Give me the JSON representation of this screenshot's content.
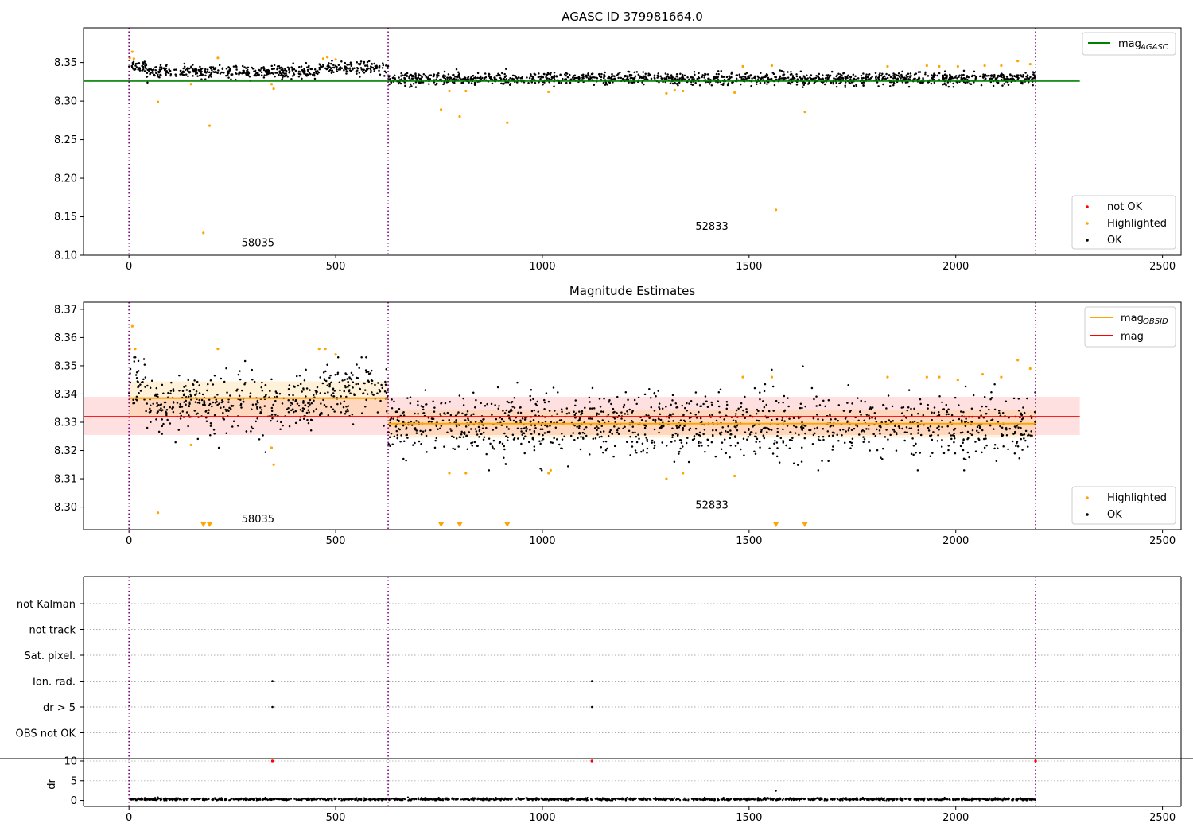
{
  "chart_data": [
    {
      "id": "agasc",
      "type": "scatter",
      "title": "AGASC ID 379981664.0",
      "xlabel": "",
      "ylabel": "",
      "xlim": [
        -110,
        2545
      ],
      "ylim": [
        8.1,
        8.395
      ],
      "xticks": [
        0,
        500,
        1000,
        1500,
        2000,
        2500
      ],
      "yticks": [
        8.1,
        8.15,
        8.2,
        8.25,
        8.3,
        8.35
      ],
      "ytick_labels": [
        "8.10",
        "8.15",
        "8.20",
        "8.25",
        "8.30",
        "8.35"
      ],
      "obsid_boundaries": [
        0,
        627,
        2193
      ],
      "obsid_labels": [
        {
          "text": "58035",
          "x": 312,
          "y": 8.112
        },
        {
          "text": "52833",
          "x": 1410,
          "y": 8.133
        }
      ],
      "reference_line": {
        "name": "mag_AGASC",
        "y": 8.326,
        "x_range": [
          -110,
          2300
        ],
        "color": "#008000"
      },
      "series": [
        {
          "name": "OK",
          "color": "#000000",
          "segments": [
            {
              "x_range": [
                0,
                40
              ],
              "mean": 8.346,
              "sd": 0.004
            },
            {
              "x_range": [
                40,
                460
              ],
              "mean": 8.338,
              "sd": 0.004
            },
            {
              "x_range": [
                460,
                627
              ],
              "mean": 8.343,
              "sd": 0.004
            },
            {
              "x_range": [
                627,
                2193
              ],
              "mean": 8.329,
              "sd": 0.004
            }
          ]
        },
        {
          "name": "Highlighted",
          "color": "#FFA500",
          "points": [
            [
              2,
              8.356
            ],
            [
              8,
              8.364
            ],
            [
              12,
              8.355
            ],
            [
              70,
              8.299
            ],
            [
              150,
              8.322
            ],
            [
              180,
              8.129
            ],
            [
              195,
              8.268
            ],
            [
              215,
              8.356
            ],
            [
              350,
              8.316
            ],
            [
              345,
              8.322
            ],
            [
              470,
              8.355
            ],
            [
              480,
              8.357
            ],
            [
              500,
              8.354
            ],
            [
              755,
              8.289
            ],
            [
              775,
              8.313
            ],
            [
              800,
              8.28
            ],
            [
              815,
              8.313
            ],
            [
              915,
              8.272
            ],
            [
              1015,
              8.312
            ],
            [
              1300,
              8.31
            ],
            [
              1320,
              8.314
            ],
            [
              1340,
              8.313
            ],
            [
              1465,
              8.311
            ],
            [
              1485,
              8.345
            ],
            [
              1555,
              8.346
            ],
            [
              1565,
              8.159
            ],
            [
              1635,
              8.286
            ],
            [
              1835,
              8.345
            ],
            [
              1930,
              8.346
            ],
            [
              1960,
              8.345
            ],
            [
              2005,
              8.345
            ],
            [
              2070,
              8.346
            ],
            [
              2110,
              8.346
            ],
            [
              2150,
              8.352
            ],
            [
              2180,
              8.348
            ]
          ]
        },
        {
          "name": "not OK",
          "color": "#FF0000",
          "points": []
        }
      ],
      "legends": [
        {
          "position": "top-right",
          "entries": [
            {
              "kind": "line",
              "label": "mag",
              "sub": "AGASC",
              "color": "#008000"
            }
          ]
        },
        {
          "position": "bottom-right",
          "entries": [
            {
              "kind": "dot",
              "label": "not OK",
              "color": "#FF0000"
            },
            {
              "kind": "dot",
              "label": "Highlighted",
              "color": "#FFA500"
            },
            {
              "kind": "dot",
              "label": "OK",
              "color": "#000000"
            }
          ]
        }
      ]
    },
    {
      "id": "estimates",
      "type": "scatter",
      "title": "Magnitude Estimates",
      "xlabel": "",
      "ylabel": "",
      "xlim": [
        -110,
        2545
      ],
      "ylim": [
        8.292,
        8.3725
      ],
      "xticks": [
        0,
        500,
        1000,
        1500,
        2000,
        2500
      ],
      "yticks": [
        8.3,
        8.31,
        8.32,
        8.33,
        8.34,
        8.35,
        8.36,
        8.37
      ],
      "ytick_labels": [
        "8.30",
        "8.31",
        "8.32",
        "8.33",
        "8.34",
        "8.35",
        "8.36",
        "8.37"
      ],
      "obsid_boundaries": [
        0,
        627,
        2193
      ],
      "obsid_labels": [
        {
          "text": "58035",
          "x": 312,
          "y": 8.2945
        },
        {
          "text": "52833",
          "x": 1410,
          "y": 8.2995
        }
      ],
      "mag_band": {
        "name": "mag",
        "y": 8.332,
        "low": 8.3255,
        "high": 8.339,
        "x_range": [
          -110,
          2300
        ],
        "color": "#FF0000"
      },
      "obsid_bands": [
        {
          "x_range": [
            0,
            627
          ],
          "mean": 8.3385,
          "low": 8.332,
          "high": 8.3445
        },
        {
          "x_range": [
            627,
            2193
          ],
          "mean": 8.3295,
          "low": 8.3245,
          "high": 8.3345
        }
      ],
      "series": [
        {
          "name": "OK",
          "color": "#000000",
          "segments": [
            {
              "x_range": [
                0,
                40
              ],
              "mean": 8.344,
              "sd": 0.005
            },
            {
              "x_range": [
                40,
                460
              ],
              "mean": 8.336,
              "sd": 0.005
            },
            {
              "x_range": [
                460,
                627
              ],
              "mean": 8.342,
              "sd": 0.005
            },
            {
              "x_range": [
                627,
                2193
              ],
              "mean": 8.329,
              "sd": 0.0055
            }
          ]
        },
        {
          "name": "Highlighted",
          "color": "#FFA500",
          "points": [
            [
              2,
              8.356
            ],
            [
              8,
              8.364
            ],
            [
              15,
              8.356
            ],
            [
              70,
              8.298
            ],
            [
              150,
              8.322
            ],
            [
              215,
              8.356
            ],
            [
              345,
              8.321
            ],
            [
              350,
              8.315
            ],
            [
              460,
              8.356
            ],
            [
              475,
              8.356
            ],
            [
              500,
              8.354
            ],
            [
              775,
              8.312
            ],
            [
              815,
              8.312
            ],
            [
              1015,
              8.312
            ],
            [
              1020,
              8.313
            ],
            [
              1300,
              8.31
            ],
            [
              1340,
              8.312
            ],
            [
              1465,
              8.311
            ],
            [
              1485,
              8.346
            ],
            [
              1555,
              8.346
            ],
            [
              1835,
              8.346
            ],
            [
              1930,
              8.346
            ],
            [
              1960,
              8.346
            ],
            [
              2005,
              8.345
            ],
            [
              2065,
              8.347
            ],
            [
              2110,
              8.346
            ],
            [
              2150,
              8.352
            ],
            [
              2180,
              8.349
            ]
          ]
        },
        {
          "name": "below-range",
          "color": "#FFA500",
          "x_points": [
            180,
            195,
            755,
            800,
            915,
            1565,
            1635
          ]
        }
      ],
      "legends": [
        {
          "position": "top-right",
          "entries": [
            {
              "kind": "line",
              "label": "mag",
              "sub": "OBSID",
              "color": "#FFA500"
            },
            {
              "kind": "line",
              "label": "mag",
              "sub": "",
              "color": "#FF0000"
            }
          ]
        },
        {
          "position": "bottom-right",
          "entries": [
            {
              "kind": "dot",
              "label": "Highlighted",
              "color": "#FFA500"
            },
            {
              "kind": "dot",
              "label": "OK",
              "color": "#000000"
            }
          ]
        }
      ]
    },
    {
      "id": "flags",
      "type": "scatter",
      "title": "",
      "xlim": [
        -110,
        2545
      ],
      "categories": [
        "not Kalman",
        "not track",
        "Sat. pixel.",
        "Ion. rad.",
        "dr > 5",
        "OBS not OK"
      ],
      "obsid_boundaries": [
        0,
        627,
        2193
      ],
      "flag_points": [
        {
          "category": "Ion. rad.",
          "x": [
            347,
            1120
          ]
        },
        {
          "category": "dr > 5",
          "x": [
            347,
            1120
          ]
        }
      ]
    },
    {
      "id": "dr",
      "type": "scatter",
      "title": "",
      "xlabel": "",
      "ylabel": "dr",
      "xlim": [
        -110,
        2545
      ],
      "ylim": [
        -1.5,
        10.6
      ],
      "xticks": [
        0,
        500,
        1000,
        1500,
        2000,
        2500
      ],
      "yticks": [
        0,
        5,
        10
      ],
      "obsid_boundaries": [
        0,
        627,
        2193
      ],
      "series": [
        {
          "name": "dr",
          "color": "#000000",
          "x_range": [
            0,
            2193
          ],
          "mean": 0.3,
          "sd": 0.15,
          "outliers": [
            [
              70,
              0.8
            ],
            [
              700,
              0.6
            ],
            [
              1565,
              2.4
            ],
            [
              1205,
              0.7
            ]
          ]
        },
        {
          "name": "dr > 5",
          "color": "#FF0000",
          "points": [
            [
              347,
              10.0
            ],
            [
              1120,
              10.0
            ],
            [
              2193,
              10.0
            ]
          ]
        }
      ]
    }
  ]
}
